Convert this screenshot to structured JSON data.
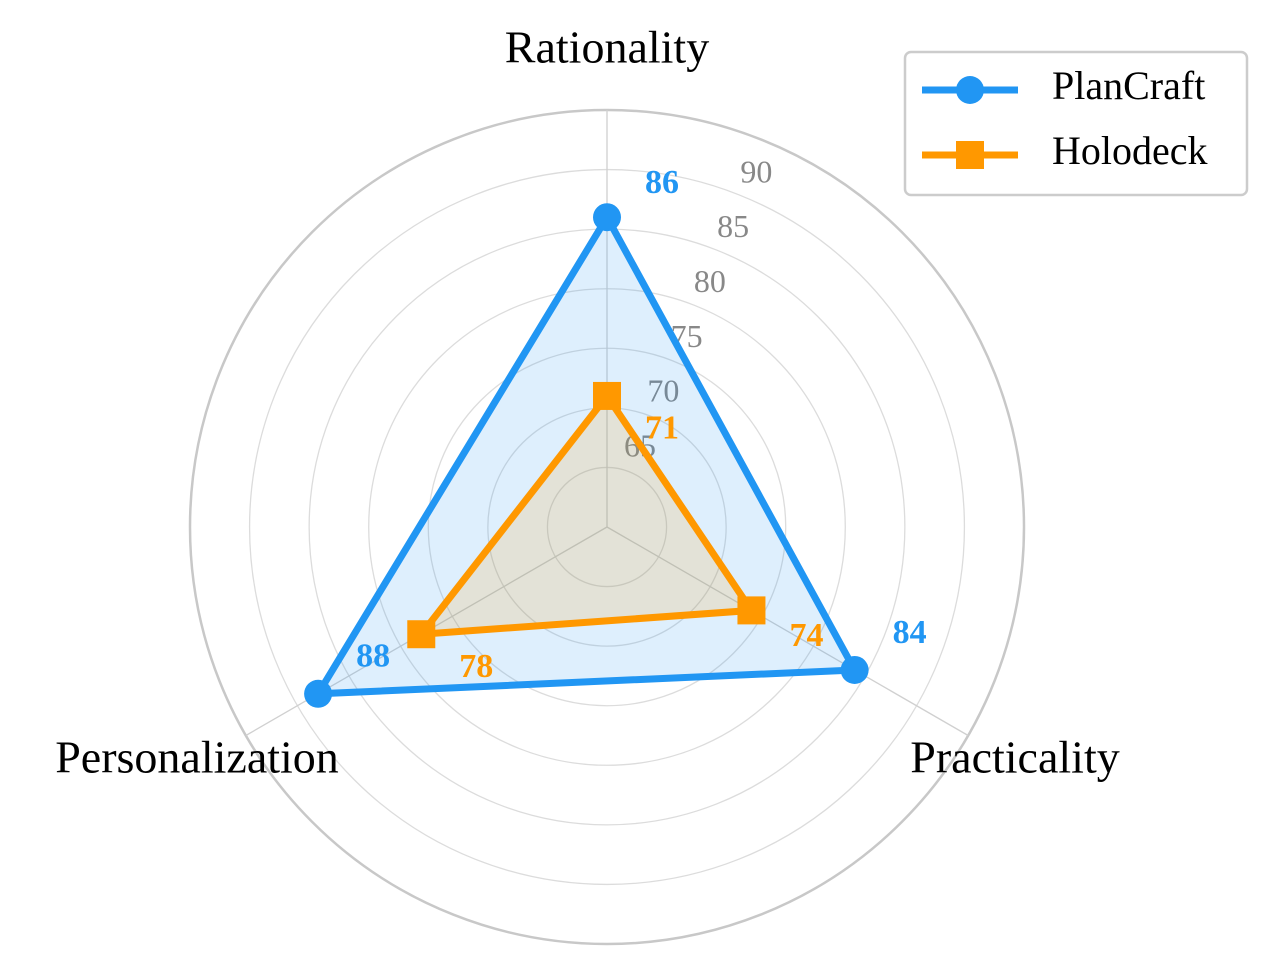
{
  "chart_data": {
    "type": "radar",
    "categories": [
      "Rationality",
      "Practicality",
      "Personalization"
    ],
    "series": [
      {
        "name": "PlanCraft",
        "color": "#2196f3",
        "marker": "circle",
        "values": [
          86,
          84,
          88
        ]
      },
      {
        "name": "Holodeck",
        "color": "#ff9800",
        "marker": "square",
        "values": [
          71,
          74,
          78
        ]
      }
    ],
    "ylim": [
      60,
      95
    ],
    "yticks": [
      65,
      70,
      75,
      80,
      85,
      90
    ],
    "grid": true,
    "legend": "upper right"
  }
}
